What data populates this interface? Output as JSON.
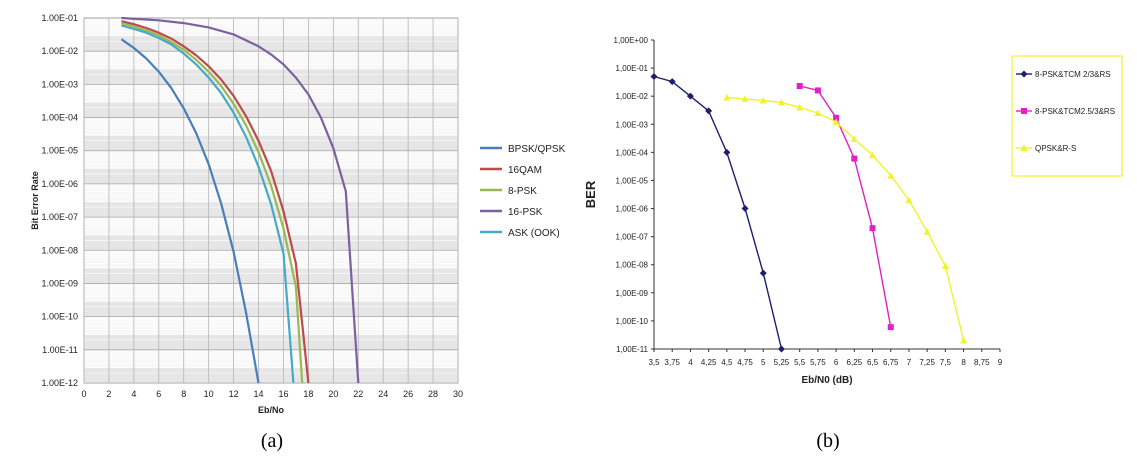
{
  "chart_data": [
    {
      "type": "line",
      "panel_label": "(a)",
      "title": "",
      "xlabel": "Eb/No",
      "ylabel": "Bit Error Rate",
      "xlim": [
        0,
        30
      ],
      "ylim": [
        1e-12,
        0.1
      ],
      "yscale": "log",
      "grid": true,
      "legend_position": "right",
      "x_ticks": [
        "0",
        "2",
        "4",
        "6",
        "8",
        "10",
        "12",
        "14",
        "16",
        "18",
        "20",
        "22",
        "24",
        "26",
        "28",
        "30"
      ],
      "y_ticks": [
        "1.00E-01",
        "1.00E-02",
        "1.00E-03",
        "1.00E-04",
        "1.00E-05",
        "1.00E-06",
        "1.00E-07",
        "1.00E-08",
        "1.00E-09",
        "1.00E-10",
        "1.00E-11",
        "1.00E-12"
      ],
      "series": [
        {
          "name": "BPSK/QPSK",
          "color": "#4a7ebb",
          "points": [
            [
              3,
              0.0229
            ],
            [
              4,
              0.0125
            ],
            [
              5,
              0.006
            ],
            [
              6,
              0.0024
            ],
            [
              7,
              0.00077
            ],
            [
              8,
              0.00019
            ],
            [
              9,
              3.4e-05
            ],
            [
              10,
              3.9e-06
            ],
            [
              11,
              2.6e-07
            ],
            [
              12,
              9e-09
            ],
            [
              13,
              1.3e-10
            ],
            [
              14,
              1e-12
            ]
          ]
        },
        {
          "name": "16QAM",
          "color": "#be4b48",
          "points": [
            [
              3,
              0.08
            ],
            [
              4,
              0.065
            ],
            [
              5,
              0.05
            ],
            [
              6,
              0.036
            ],
            [
              7,
              0.024
            ],
            [
              8,
              0.014
            ],
            [
              9,
              0.0075
            ],
            [
              10,
              0.0035
            ],
            [
              11,
              0.0014
            ],
            [
              12,
              0.00045
            ],
            [
              13,
              0.00011
            ],
            [
              14,
              2e-05
            ],
            [
              15,
              2.5e-06
            ],
            [
              16,
              1.5e-07
            ],
            [
              17,
              4e-09
            ],
            [
              18,
              1e-12
            ]
          ]
        },
        {
          "name": "8-PSK",
          "color": "#98b954",
          "points": [
            [
              3,
              0.07
            ],
            [
              4,
              0.055
            ],
            [
              5,
              0.042
            ],
            [
              6,
              0.03
            ],
            [
              7,
              0.019
            ],
            [
              8,
              0.011
            ],
            [
              9,
              0.0055
            ],
            [
              10,
              0.0024
            ],
            [
              11,
              0.0009
            ],
            [
              12,
              0.00026
            ],
            [
              13,
              5.8e-05
            ],
            [
              14,
              9e-06
            ],
            [
              15,
              9e-07
            ],
            [
              16,
              4.5e-08
            ],
            [
              17,
              8e-10
            ],
            [
              17.5,
              1e-12
            ]
          ]
        },
        {
          "name": "16-PSK",
          "color": "#7d60a0",
          "points": [
            [
              3,
              0.1
            ],
            [
              6,
              0.085
            ],
            [
              8,
              0.07
            ],
            [
              10,
              0.052
            ],
            [
              12,
              0.032
            ],
            [
              14,
              0.014
            ],
            [
              15,
              0.008
            ],
            [
              16,
              0.004
            ],
            [
              17,
              0.0016
            ],
            [
              18,
              0.0005
            ],
            [
              19,
              0.0001
            ],
            [
              20,
              1.2e-05
            ],
            [
              21,
              6e-07
            ],
            [
              22,
              1e-12
            ]
          ]
        },
        {
          "name": "ASK (OOK)",
          "color": "#46aac5",
          "points": [
            [
              3,
              0.06
            ],
            [
              4,
              0.047
            ],
            [
              5,
              0.036
            ],
            [
              6,
              0.025
            ],
            [
              7,
              0.016
            ],
            [
              8,
              0.0085
            ],
            [
              9,
              0.004
            ],
            [
              10,
              0.0016
            ],
            [
              11,
              0.00055
            ],
            [
              12,
              0.00014
            ],
            [
              13,
              2.6e-05
            ],
            [
              14,
              3.3e-06
            ],
            [
              15,
              2.5e-07
            ],
            [
              16,
              8e-09
            ],
            [
              16.8,
              1e-12
            ]
          ]
        }
      ]
    },
    {
      "type": "line",
      "panel_label": "(b)",
      "title": "",
      "xlabel": "Eb/N0 (dB)",
      "ylabel": "BER",
      "xlim": [
        3.5,
        9
      ],
      "ylim": [
        1e-11,
        1
      ],
      "yscale": "log",
      "grid": false,
      "legend_position": "top-right",
      "x_ticks": [
        "3,5",
        "3,75",
        "4",
        "4,25",
        "4,5",
        "4,75",
        "5",
        "5,25",
        "5,5",
        "5,75",
        "6",
        "6,25",
        "6,5",
        "6,75",
        "7",
        "7,25",
        "7,5",
        "8",
        "8,75",
        "9"
      ],
      "y_ticks": [
        "1,00E+00",
        "1,00E-01",
        "1,00E-02",
        "1,00E-03",
        "1,00E-04",
        "1,00E-05",
        "1,00E-06",
        "1,00E-07",
        "1,00E-08",
        "1,00E-09",
        "1,00E-10",
        "1,00E-11"
      ],
      "series": [
        {
          "name": "8-PSK&TCM 2/3&RS",
          "color": "#1f1f6e",
          "marker": "diamond",
          "points": [
            [
              "3,5",
              0.05
            ],
            [
              "3,75",
              0.033
            ],
            [
              "4",
              0.01
            ],
            [
              "4,25",
              0.003
            ],
            [
              "4,5",
              0.0001
            ],
            [
              "4,75",
              1e-06
            ],
            [
              "5",
              5e-09
            ],
            [
              "5,25",
              1e-11
            ]
          ]
        },
        {
          "name": "8-PSK&TCM2.5/3&RS",
          "color": "#e020c8",
          "marker": "square",
          "points": [
            [
              "5,5",
              0.023
            ],
            [
              "5,75",
              0.016
            ],
            [
              "6",
              0.0017
            ],
            [
              "6,25",
              6e-05
            ],
            [
              "6,5",
              2e-07
            ],
            [
              "6,75",
              6e-11
            ]
          ]
        },
        {
          "name": "QPSK&R-S",
          "color": "#f2f22a",
          "marker": "triangle",
          "points": [
            [
              "4,5",
              0.009
            ],
            [
              "4,75",
              0.008
            ],
            [
              "5",
              0.007
            ],
            [
              "5,25",
              0.006
            ],
            [
              "5,5",
              0.004
            ],
            [
              "5,75",
              0.0025
            ],
            [
              "6",
              0.0012
            ],
            [
              "6,25",
              0.0003
            ],
            [
              "6,5",
              8e-05
            ],
            [
              "6,75",
              1.5e-05
            ],
            [
              "7",
              2e-06
            ],
            [
              "7,25",
              1.5e-07
            ],
            [
              "7,5",
              9e-09
            ],
            [
              "8",
              2e-11
            ]
          ]
        }
      ]
    }
  ]
}
